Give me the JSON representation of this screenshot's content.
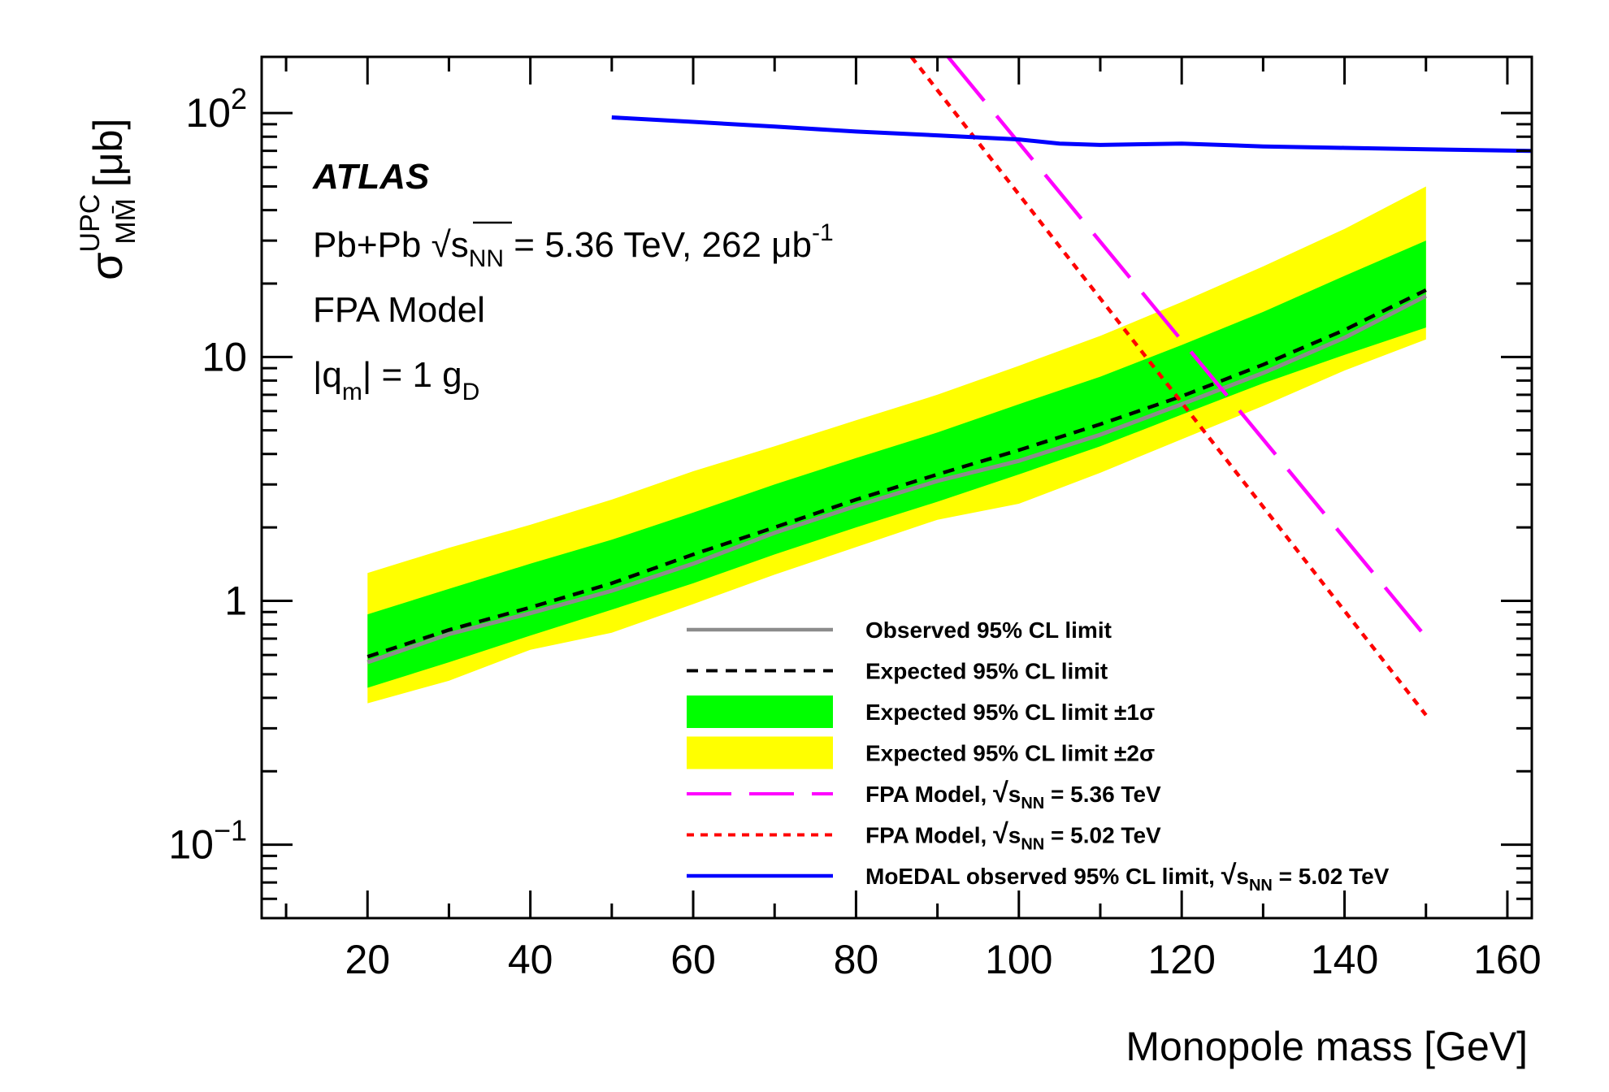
{
  "chart_data": {
    "type": "line",
    "title": "",
    "xlabel": "Monopole mass [GeV]",
    "ylabel": "σ^UPC_MM̄ [μb]",
    "ylabel_parts": {
      "sigma": "σ",
      "sup": "UPC",
      "sub": "MM̄",
      "unit": " [μb]"
    },
    "xlim": [
      7,
      163
    ],
    "ylim": [
      0.05,
      170
    ],
    "yscale": "log",
    "x_ticks": [
      20,
      40,
      60,
      80,
      100,
      120,
      140,
      160
    ],
    "x_tick_labels": [
      "20",
      "40",
      "60",
      "80",
      "100",
      "120",
      "140",
      "160"
    ],
    "y_ticks": [
      0.1,
      1,
      10,
      100
    ],
    "y_tick_labels": [
      {
        "base": "10",
        "exp": "−1"
      },
      {
        "base": "1",
        "exp": ""
      },
      {
        "base": "10",
        "exp": ""
      },
      {
        "base": "10",
        "exp": "2"
      }
    ],
    "annotations": {
      "experiment": "ATLAS",
      "collision_prefix": "Pb+Pb ",
      "collision_sqrt": "√",
      "collision_s": "s",
      "collision_sub": "NN",
      "collision_suffix": " = 5.36 TeV, 262 μb",
      "collision_exp": "-1",
      "model": "FPA Model",
      "charge_q": "|q",
      "charge_qsub": "m",
      "charge_mid": "| = 1 g",
      "charge_gsub": "D"
    },
    "bands": {
      "x": [
        20,
        30,
        40,
        50,
        60,
        70,
        80,
        90,
        100,
        110,
        120,
        130,
        140,
        150
      ],
      "two_sigma_upper": [
        1.3,
        1.65,
        2.05,
        2.6,
        3.4,
        4.3,
        5.5,
        7.0,
        9.2,
        12.2,
        16.8,
        23.5,
        33.5,
        50
      ],
      "one_sigma_upper": [
        0.88,
        1.12,
        1.42,
        1.78,
        2.3,
        3.0,
        3.85,
        4.9,
        6.4,
        8.3,
        11.2,
        15.3,
        21.5,
        30
      ],
      "one_sigma_lower": [
        0.44,
        0.56,
        0.72,
        0.92,
        1.18,
        1.55,
        2.0,
        2.55,
        3.3,
        4.3,
        5.8,
        7.8,
        10.2,
        13.2
      ],
      "two_sigma_lower": [
        0.38,
        0.47,
        0.63,
        0.74,
        0.97,
        1.28,
        1.66,
        2.15,
        2.5,
        3.35,
        4.6,
        6.3,
        8.8,
        11.8
      ]
    },
    "series": [
      {
        "name": "Observed 95% CL limit",
        "color": "#8c8c8c",
        "style": "solid",
        "x": [
          20,
          30,
          40,
          50,
          60,
          70,
          80,
          90,
          100,
          110,
          120,
          130,
          140,
          150
        ],
        "values": [
          0.56,
          0.73,
          0.89,
          1.1,
          1.42,
          1.9,
          2.45,
          3.1,
          3.75,
          4.8,
          6.4,
          8.6,
          12.0,
          17.8
        ]
      },
      {
        "name": "Expected 95% CL limit",
        "color": "#000000",
        "style": "dashed",
        "x": [
          20,
          30,
          40,
          50,
          60,
          70,
          80,
          90,
          100,
          110,
          120,
          130,
          140,
          150
        ],
        "values": [
          0.59,
          0.76,
          0.94,
          1.18,
          1.55,
          2.0,
          2.6,
          3.3,
          4.15,
          5.3,
          6.9,
          9.3,
          12.9,
          18.8
        ]
      },
      {
        "name": "FPA Model, √sNN = 5.36 TeV",
        "color": "#ff00ff",
        "style": "longdash",
        "x": [
          91.3,
          150
        ],
        "values": [
          170,
          0.71
        ]
      },
      {
        "name": "FPA Model, √sNN = 5.02 TeV",
        "color": "#ff0000",
        "style": "dotted",
        "x": [
          86.8,
          150
        ],
        "values": [
          170,
          0.34
        ]
      },
      {
        "name": "MoEDAL observed 95% CL limit, √sNN = 5.02 TeV",
        "color": "#0000ff",
        "style": "solid",
        "x": [
          50,
          60,
          70,
          80,
          90,
          100,
          105,
          110,
          120,
          130,
          140,
          150,
          163
        ],
        "values": [
          96,
          92,
          88,
          84,
          81,
          78,
          75,
          74,
          75,
          73,
          72,
          71,
          70
        ]
      }
    ],
    "legend": {
      "position": "bottom-right",
      "entries": [
        {
          "key": "observed",
          "kind": "line",
          "color": "#8c8c8c",
          "style": "solid",
          "text": "Observed 95% CL limit"
        },
        {
          "key": "expected",
          "kind": "line",
          "color": "#000000",
          "style": "dashed",
          "text": "Expected 95% CL limit"
        },
        {
          "key": "one-sigma",
          "kind": "box",
          "color": "#00ff00",
          "text": "Expected 95% CL limit ±1σ"
        },
        {
          "key": "two-sigma",
          "kind": "box",
          "color": "#ffff00",
          "text": "Expected 95% CL limit ±2σ"
        },
        {
          "key": "fpa-536",
          "kind": "line",
          "color": "#ff00ff",
          "style": "longdash",
          "pre": "FPA Model, ",
          "sqrt": "√",
          "s": "s",
          "sub": "NN",
          "post": " = 5.36 TeV"
        },
        {
          "key": "fpa-502",
          "kind": "line",
          "color": "#ff0000",
          "style": "dotted",
          "pre": "FPA Model, ",
          "sqrt": "√",
          "s": "s",
          "sub": "NN",
          "post": " = 5.02 TeV"
        },
        {
          "key": "moedal",
          "kind": "line",
          "color": "#0000ff",
          "style": "solid",
          "pre": "MoEDAL observed 95% CL limit, ",
          "sqrt": "√",
          "s": "s",
          "sub": "NN",
          "post": " = 5.02 TeV"
        }
      ]
    },
    "colors": {
      "two_sigma_band": "#ffff00",
      "one_sigma_band": "#00ff00"
    }
  }
}
